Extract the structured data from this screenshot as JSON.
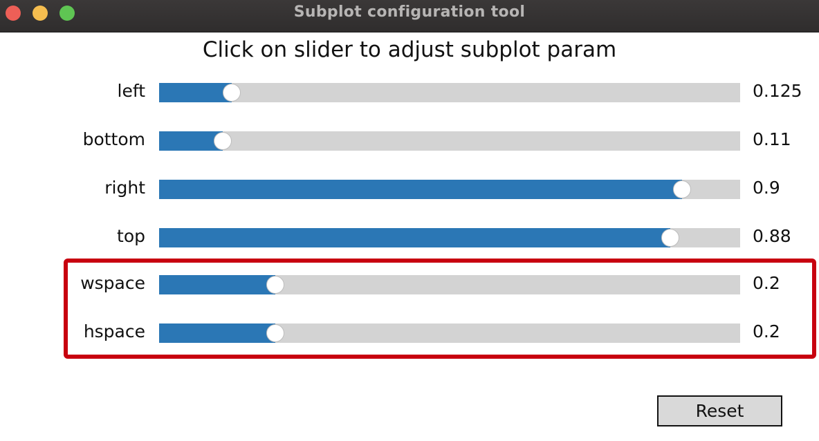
{
  "window": {
    "title": "Subplot configuration tool"
  },
  "heading": "Click on slider to adjust subplot param",
  "sliders": [
    {
      "label": "left",
      "value": 0.125,
      "display": "0.125",
      "fill_fraction": 0.125
    },
    {
      "label": "bottom",
      "value": 0.11,
      "display": "0.11",
      "fill_fraction": 0.11
    },
    {
      "label": "right",
      "value": 0.9,
      "display": "0.9",
      "fill_fraction": 0.9
    },
    {
      "label": "top",
      "value": 0.88,
      "display": "0.88",
      "fill_fraction": 0.88
    },
    {
      "label": "wspace",
      "value": 0.2,
      "display": "0.2",
      "fill_fraction": 0.2
    },
    {
      "label": "hspace",
      "value": 0.2,
      "display": "0.2",
      "fill_fraction": 0.2
    }
  ],
  "highlight": {
    "covers": [
      "wspace",
      "hspace"
    ],
    "color": "#c8000f"
  },
  "reset_label": "Reset",
  "colors": {
    "slider_fill": "#2b77b5",
    "slider_track": "#d3d3d3",
    "titlebar": "#2f2d2d"
  }
}
